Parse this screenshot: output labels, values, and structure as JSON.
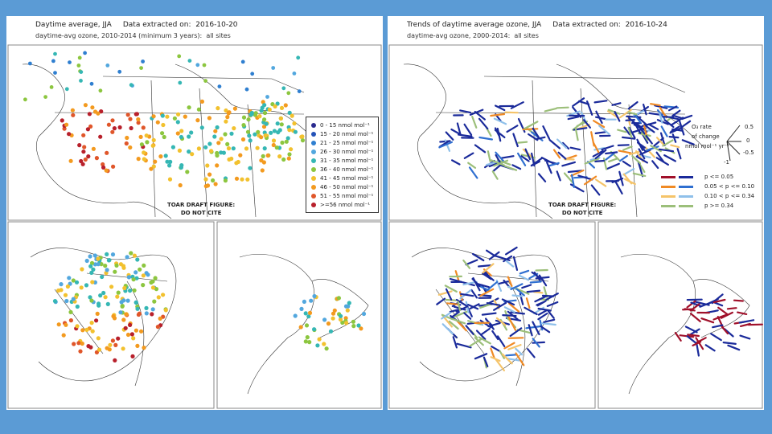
{
  "left": {
    "title": "Daytime average, JJA",
    "extracted_label": "Data extracted on:",
    "extracted_date": "2016-10-20",
    "subtitle": "daytime-avg ozone, 2010-2014 (minimum 3 years)",
    "subtitle_sites": "all sites",
    "draft_line1": "TOAR DRAFT FIGURE:",
    "draft_line2": "DO NOT CITE",
    "legend": [
      {
        "label": "0 - 15 nmol mol⁻¹",
        "color": "#2b2b8f"
      },
      {
        "label": "15 - 20 nmol mol⁻¹",
        "color": "#2453b8"
      },
      {
        "label": "21 - 25 nmol mol⁻¹",
        "color": "#2f7fd0"
      },
      {
        "label": "26 - 30 nmol mol⁻¹",
        "color": "#52a7de"
      },
      {
        "label": "31 - 35 nmol mol⁻¹",
        "color": "#35b7b4"
      },
      {
        "label": "36 - 40 nmol mol⁻¹",
        "color": "#8cc63f"
      },
      {
        "label": "41 - 45 nmol mol⁻¹",
        "color": "#f2c12e"
      },
      {
        "label": "46 - 50 nmol mol⁻¹",
        "color": "#f39a1f"
      },
      {
        "label": "51 - 55 nmol mol⁻¹",
        "color": "#e0562a"
      },
      {
        "label": ">=56 nmol mol⁻¹",
        "color": "#b8202b"
      }
    ]
  },
  "right": {
    "title": "Trends of daytime average ozone, JJA",
    "extracted_label": "Data extracted on:",
    "extracted_date": "2016-10-24",
    "subtitle": "daytime-avg ozone, 2000-2014",
    "subtitle_sites": "all sites",
    "draft_line1": "TOAR DRAFT FIGURE:",
    "draft_line2": "DO NOT CITE",
    "rate_key": {
      "line1": "O₃ rate",
      "line2": "of change",
      "line3": "nmol mol⁻¹ yr⁻¹",
      "v_top": "0.5",
      "v_mid": "0",
      "v_bot": "-0.5",
      "v_bot2": "-1"
    },
    "trend_legend": [
      {
        "label": "p <= 0.05",
        "neg_color": "#a0102a",
        "pos_color": "#1a2a9a"
      },
      {
        "label": "0.05 < p <= 0.10",
        "neg_color": "#f08a24",
        "pos_color": "#2f6fd0"
      },
      {
        "label": "0.10 < p <= 0.34",
        "neg_color": "#f5c46a",
        "pos_color": "#8fc0ea"
      },
      {
        "label": "p >= 0.34",
        "neg_color": "#9cbf7a",
        "pos_color": "#9cbf7a"
      }
    ]
  },
  "colors": {
    "background": "#5b9bd5",
    "panel": "#ffffff",
    "coastline": "#222222"
  }
}
